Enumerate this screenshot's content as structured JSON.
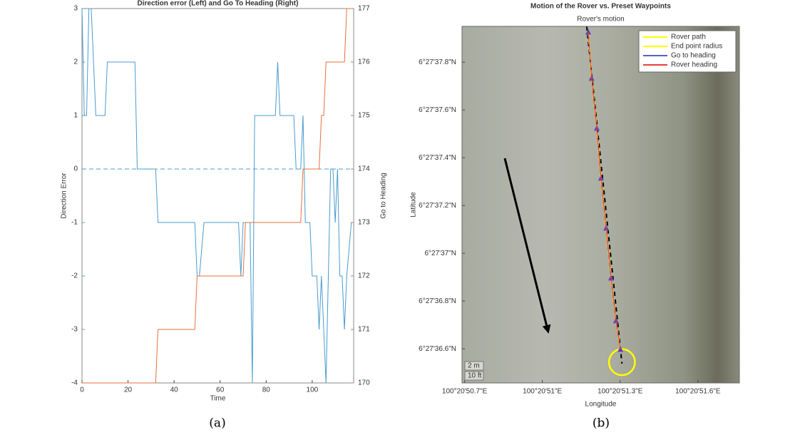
{
  "chart_data": [
    {
      "type": "line",
      "title": "Direction error (Left) and Go To Heading (Right)",
      "x_label": "Time",
      "y_label": "Direction Error",
      "y2_label": "Go to Heading",
      "caption": "(a)",
      "xlim": [
        0,
        118
      ],
      "xticks": [
        0,
        20,
        40,
        60,
        80,
        100
      ],
      "ylim": [
        -4,
        3
      ],
      "yticks": [
        -4,
        -3,
        -2,
        -1,
        0,
        1,
        2,
        3
      ],
      "y2lim": [
        170,
        177
      ],
      "y2ticks": [
        170,
        171,
        172,
        173,
        174,
        175,
        176,
        177
      ],
      "reference_line": 0,
      "series": [
        {
          "color": "#4a9bd0",
          "x": [
            0,
            1,
            2,
            3,
            4,
            6,
            10,
            11,
            23,
            24,
            32,
            33,
            49,
            50,
            51,
            53,
            68,
            69,
            70,
            73,
            74,
            75,
            84,
            85,
            86,
            92,
            93,
            95,
            96,
            97,
            99,
            100,
            102,
            103,
            104,
            106,
            107,
            108,
            109,
            110,
            111,
            112,
            113,
            114,
            115,
            117
          ],
          "values": [
            3,
            1,
            1,
            3,
            3,
            1,
            1,
            2,
            2,
            0,
            0,
            -1,
            -1,
            -2,
            -2,
            -1,
            -1,
            -2,
            -1,
            -1,
            -4,
            1,
            1,
            2,
            1,
            1,
            0,
            0,
            1,
            -1,
            -1,
            -2,
            -2,
            -3,
            -2,
            -4,
            -2,
            0,
            0,
            -1,
            0,
            -2,
            -2,
            -3,
            -2,
            -1
          ]
        },
        {
          "color": "#e8703a",
          "axis": "y2",
          "x": [
            0,
            32,
            33,
            49,
            50,
            70,
            71,
            95,
            96,
            103,
            104,
            105,
            106,
            114,
            115,
            118
          ],
          "values": [
            170,
            170,
            171,
            171,
            172,
            172,
            173,
            173,
            174,
            174,
            175,
            175,
            176,
            176,
            177,
            177
          ]
        }
      ]
    },
    {
      "type": "track",
      "title": "Motion of the Rover vs. Preset Waypoints",
      "subtitle": "Rover's motion",
      "x_label": "Longitude",
      "y_label": "Latitude",
      "caption": "(b)",
      "xlim": [
        50.69,
        51.76
      ],
      "xticks": [
        {
          "value": 50.7,
          "label": "100°20'50.7\"E"
        },
        {
          "value": 51.0,
          "label": "100°20'51\"E"
        },
        {
          "value": 51.3,
          "label": "100°20'51.3\"E"
        },
        {
          "value": 51.6,
          "label": "100°20'51.6\"E"
        }
      ],
      "ylim": [
        36.457,
        37.95
      ],
      "yticks": [
        {
          "value": 36.6,
          "label": "6°27'36.6\"N"
        },
        {
          "value": 36.8,
          "label": "6°27'36.8\"N"
        },
        {
          "value": 37.0,
          "label": "6°27'37\"N"
        },
        {
          "value": 37.2,
          "label": "6°27'37.2\"N"
        },
        {
          "value": 37.4,
          "label": "6°27'37.4\"N"
        },
        {
          "value": 37.6,
          "label": "6°27'37.6\"N"
        },
        {
          "value": 37.8,
          "label": "6°27'37.8\"N"
        }
      ],
      "legend": "upper right",
      "scale_labels": [
        "2 m",
        "10 ft"
      ],
      "series": [
        {
          "color": "#000000",
          "dash": true,
          "x": [
            51.171,
            51.307
          ],
          "values": [
            37.95,
            36.538
          ]
        },
        {
          "name": "Rover path",
          "color": "#ffff00",
          "dash": true,
          "x": [
            51.177,
            51.19,
            51.21,
            51.226,
            51.246,
            51.265,
            51.284,
            51.301
          ],
          "values": [
            37.926,
            37.732,
            37.523,
            37.314,
            37.105,
            36.896,
            36.717,
            36.597
          ]
        },
        {
          "name": "End point radius",
          "color": "#ffff00",
          "circle": true,
          "x": [
            51.307
          ],
          "values": [
            36.544
          ],
          "r": [
            0.05
          ]
        },
        {
          "name": "Go to heading",
          "color": "#5560d0",
          "marker": "triangle",
          "x": [
            51.177,
            51.19,
            51.21,
            51.226,
            51.246,
            51.265,
            51.284,
            51.301
          ],
          "values": [
            37.926,
            37.732,
            37.523,
            37.314,
            37.105,
            36.896,
            36.717,
            36.597
          ]
        },
        {
          "name": "Rover heading",
          "color": "#e8403a",
          "x": [
            51.177,
            51.19,
            51.21,
            51.226,
            51.246,
            51.265,
            51.284,
            51.301
          ],
          "values": [
            37.926,
            37.732,
            37.523,
            37.314,
            37.105,
            36.896,
            36.717,
            36.597
          ]
        }
      ]
    }
  ]
}
